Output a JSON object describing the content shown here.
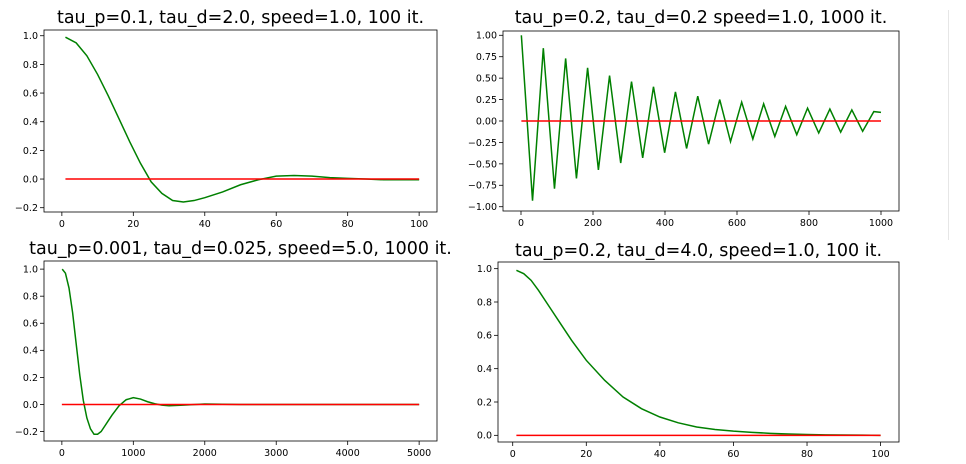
{
  "colors": {
    "response": "#008000",
    "reference": "#ff0000",
    "axis": "#000000"
  },
  "chart_data": [
    {
      "type": "line",
      "title": "tau_p=0.1, tau_d=2.0, speed=1.0, 100 it.",
      "xlim": [
        -5,
        105
      ],
      "ylim": [
        -0.23,
        1.04
      ],
      "xticks": [
        0,
        20,
        40,
        60,
        80,
        100
      ],
      "yticks": [
        -0.2,
        0.0,
        0.2,
        0.4,
        0.6,
        0.8,
        1.0
      ],
      "xtick_labels": [
        "0",
        "20",
        "40",
        "60",
        "80",
        "100"
      ],
      "ytick_labels": [
        "−0.2",
        "0.0",
        "0.2",
        "0.4",
        "0.6",
        "0.8",
        "1.0"
      ],
      "series": [
        {
          "x": [
            1,
            4,
            7,
            10,
            13,
            16,
            19,
            22,
            25,
            28,
            31,
            34,
            37,
            40,
            45,
            50,
            55,
            60,
            65,
            70,
            75,
            80,
            85,
            90,
            95,
            100
          ],
          "values": [
            0.99,
            0.95,
            0.86,
            0.73,
            0.58,
            0.42,
            0.26,
            0.11,
            -0.02,
            -0.1,
            -0.15,
            -0.16,
            -0.15,
            -0.13,
            -0.09,
            -0.04,
            -0.005,
            0.02,
            0.025,
            0.02,
            0.01,
            0.005,
            0.0,
            -0.005,
            -0.005,
            -0.005
          ],
          "color": "#008000"
        },
        {
          "x": [
            1,
            100
          ],
          "values": [
            0,
            0
          ],
          "color": "#ff0000"
        }
      ]
    },
    {
      "type": "line",
      "title": "tau_p=0.2, tau_d=0.2 speed=1.0, 1000 it.",
      "xlim": [
        -50,
        1050
      ],
      "ylim": [
        -1.05,
        1.05
      ],
      "xticks": [
        0,
        200,
        400,
        600,
        800,
        1000
      ],
      "yticks": [
        -1.0,
        -0.75,
        -0.5,
        -0.25,
        0.0,
        0.25,
        0.5,
        0.75,
        1.0
      ],
      "xtick_labels": [
        "0",
        "200",
        "400",
        "600",
        "800",
        "1000"
      ],
      "ytick_labels": [
        "−1.00",
        "−0.75",
        "−0.50",
        "−0.25",
        "0.00",
        "0.25",
        "0.50",
        "0.75",
        "1.00"
      ],
      "series": [
        {
          "x": [
            1,
            32,
            62,
            93,
            124,
            154,
            185,
            215,
            246,
            277,
            307,
            338,
            368,
            399,
            429,
            460,
            491,
            521,
            552,
            582,
            613,
            644,
            674,
            705,
            735,
            766,
            796,
            827,
            858,
            888,
            919,
            949,
            980,
            1000
          ],
          "values": [
            1.0,
            -0.93,
            0.85,
            -0.79,
            0.73,
            -0.67,
            0.62,
            -0.57,
            0.53,
            -0.49,
            0.46,
            -0.43,
            0.4,
            -0.37,
            0.34,
            -0.32,
            0.29,
            -0.27,
            0.25,
            -0.24,
            0.22,
            -0.21,
            0.2,
            -0.18,
            0.17,
            -0.16,
            0.15,
            -0.14,
            0.14,
            -0.13,
            0.13,
            -0.12,
            0.11,
            0.1
          ],
          "color": "#008000"
        },
        {
          "x": [
            1,
            1000
          ],
          "values": [
            0,
            0
          ],
          "color": "#ff0000"
        }
      ]
    },
    {
      "type": "line",
      "title": "tau_p=0.001, tau_d=0.025, speed=5.0, 1000 it.",
      "xlim": [
        -250,
        5250
      ],
      "ylim": [
        -0.27,
        1.06
      ],
      "xticks": [
        0,
        1000,
        2000,
        3000,
        4000,
        5000
      ],
      "yticks": [
        -0.2,
        0.0,
        0.2,
        0.4,
        0.6,
        0.8,
        1.0
      ],
      "xtick_labels": [
        "0",
        "1000",
        "2000",
        "3000",
        "4000",
        "5000"
      ],
      "ytick_labels": [
        "−0.2",
        "0.0",
        "0.2",
        "0.4",
        "0.6",
        "0.8",
        "1.0"
      ],
      "series": [
        {
          "x": [
            5,
            50,
            100,
            150,
            200,
            250,
            300,
            350,
            400,
            450,
            500,
            550,
            600,
            650,
            700,
            800,
            900,
            1000,
            1100,
            1200,
            1300,
            1400,
            1500,
            1700,
            2000,
            2500,
            3000,
            3500,
            4000,
            4500,
            5000
          ],
          "values": [
            1.0,
            0.97,
            0.86,
            0.68,
            0.45,
            0.22,
            0.03,
            -0.1,
            -0.18,
            -0.22,
            -0.22,
            -0.2,
            -0.16,
            -0.12,
            -0.08,
            -0.01,
            0.035,
            0.05,
            0.04,
            0.02,
            0.005,
            -0.005,
            -0.01,
            -0.005,
            0.003,
            0.0,
            0.0,
            0.0,
            0.0,
            0.0,
            0.0
          ],
          "color": "#008000"
        },
        {
          "x": [
            0,
            5000
          ],
          "values": [
            0,
            0
          ],
          "color": "#ff0000"
        }
      ]
    },
    {
      "type": "line",
      "title": "tau_p=0.2, tau_d=4.0, speed=1.0, 100 it.",
      "xlim": [
        -4,
        105
      ],
      "ylim": [
        -0.04,
        1.04
      ],
      "xticks": [
        0,
        20,
        40,
        60,
        80,
        100
      ],
      "yticks": [
        0.0,
        0.2,
        0.4,
        0.6,
        0.8,
        1.0
      ],
      "xtick_labels": [
        "0",
        "20",
        "40",
        "60",
        "80",
        "100"
      ],
      "ytick_labels": [
        "0.0",
        "0.2",
        "0.4",
        "0.6",
        "0.8",
        "1.0"
      ],
      "series": [
        {
          "x": [
            1,
            3,
            5,
            7,
            10,
            13,
            16,
            20,
            25,
            30,
            35,
            40,
            45,
            50,
            55,
            60,
            65,
            70,
            75,
            80,
            85,
            90,
            95,
            100
          ],
          "values": [
            0.99,
            0.97,
            0.93,
            0.87,
            0.77,
            0.67,
            0.57,
            0.45,
            0.33,
            0.23,
            0.16,
            0.11,
            0.075,
            0.05,
            0.035,
            0.025,
            0.018,
            0.012,
            0.008,
            0.005,
            0.003,
            0.002,
            0.001,
            0.0
          ],
          "color": "#008000"
        },
        {
          "x": [
            1,
            100
          ],
          "values": [
            0,
            0
          ],
          "color": "#ff0000"
        }
      ]
    }
  ]
}
